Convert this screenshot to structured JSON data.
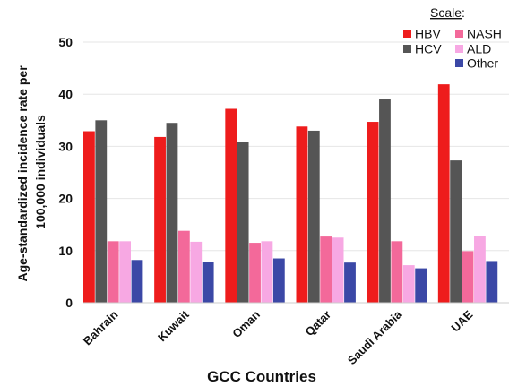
{
  "chart_data": {
    "type": "bar",
    "title": "",
    "xlabel": "GCC Countries",
    "ylabel_line1": "Age-standardized incidence rate per",
    "ylabel_line2": "100,000 individuals",
    "ylim": [
      0,
      50
    ],
    "yticks": [
      0,
      10,
      20,
      30,
      40,
      50
    ],
    "grid": true,
    "legend_title": "Scale",
    "legend_suffix": ":",
    "legend_placement": "top-right",
    "categories": [
      "Bahrain",
      "Kuwait",
      "Oman",
      "Qatar",
      "Saudi Arabia",
      "UAE"
    ],
    "series": [
      {
        "name": "HBV",
        "color": "#ee1c1c",
        "values": [
          32.9,
          31.8,
          37.2,
          33.8,
          34.7,
          41.9
        ]
      },
      {
        "name": "HCV",
        "color": "#555555",
        "values": [
          35.0,
          34.5,
          30.9,
          33.0,
          39.0,
          27.3
        ]
      },
      {
        "name": "NASH",
        "color": "#f3699a",
        "values": [
          11.8,
          13.8,
          11.5,
          12.7,
          11.8,
          9.9
        ]
      },
      {
        "name": "ALD",
        "color": "#f7a8e3",
        "values": [
          11.8,
          11.7,
          11.8,
          12.5,
          7.2,
          12.8
        ]
      },
      {
        "name": "Other",
        "color": "#3b48a6",
        "values": [
          8.2,
          7.9,
          8.5,
          7.7,
          6.6,
          8.0
        ]
      }
    ]
  }
}
